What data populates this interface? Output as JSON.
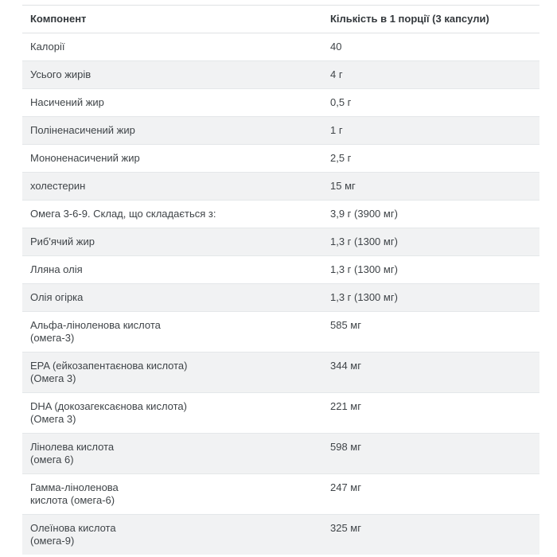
{
  "colors": {
    "page_background": "#ffffff",
    "stripe_row_bg": "#f1f2f3",
    "row_divider": "#e4e7e9",
    "header_border": "#dfe2e4",
    "text": "#3f4448",
    "header_text": "#33383c"
  },
  "table": {
    "columns": [
      {
        "label": "Компонент"
      },
      {
        "label": "Кількість в 1 порції (3 капсули)"
      }
    ],
    "rows": [
      {
        "component": "Калорії",
        "amount": "40"
      },
      {
        "component": "Усього жирів",
        "amount": "4 г"
      },
      {
        "component": "Насичений жир",
        "amount": "0,5 г"
      },
      {
        "component": "Поліненасичений жир",
        "amount": "1 г"
      },
      {
        "component": "Мононенасичений жир",
        "amount": "2,5 г"
      },
      {
        "component": "холестерин",
        "amount": "15 мг"
      },
      {
        "component": "Омега 3-6-9. Склад, що складається з:",
        "amount": "3,9 г (3900 мг)"
      },
      {
        "component": "Риб'ячий жир",
        "amount": "1,3 г (1300 мг)"
      },
      {
        "component": "Лляна олія",
        "amount": "1,3 г (1300 мг)"
      },
      {
        "component": "Олія огірка",
        "amount": "1,3 г (1300 мг)"
      },
      {
        "component": "Альфа-ліноленова кислота\n(омега-3)",
        "amount": "585 мг"
      },
      {
        "component": "EPA (ейкозапентаєнова кислота)\n(Омега 3)",
        "amount": "344 мг"
      },
      {
        "component": "DHA (докозагексаєнова кислота)\n(Омега 3)",
        "amount": "221 мг"
      },
      {
        "component": "Лінолева кислота\n(омега 6)",
        "amount": "598 мг"
      },
      {
        "component": "Гамма-ліноленова\nкислота (омега-6)",
        "amount": "247 мг"
      },
      {
        "component": "Олеїнова кислота\n(омега-9)",
        "amount": "325 мг"
      }
    ]
  }
}
